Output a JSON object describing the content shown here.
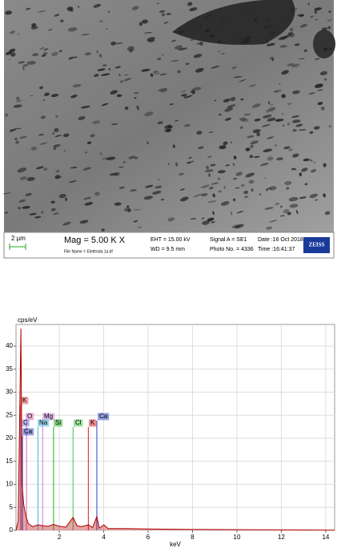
{
  "sem_image": {
    "scale_bar": "2 µm",
    "mag": "Mag =  5.00 K X",
    "file_name": "File Name = Elettroda 1a.tif",
    "eht": "EHT = 15.00 kV",
    "wd": "WD = 9.5 mm",
    "signal": "Signal A = SE1",
    "photo": "Photo No. = 4336",
    "date": "Date :16 Oct 2018",
    "time": "Time :16:41:37",
    "brand": "ZEISS"
  },
  "chart_data": {
    "type": "spectrum",
    "ylabel": "cps/eV",
    "xlabel": "keV",
    "xlim": [
      0.05,
      14.4
    ],
    "ylim": [
      0,
      44.7
    ],
    "xticks": [
      2,
      4,
      6,
      8,
      10,
      12,
      14
    ],
    "yticks": [
      0,
      5,
      10,
      15,
      20,
      25,
      30,
      35,
      40
    ],
    "grid": true,
    "series": [
      {
        "color": "#b00000",
        "x": [
          0.05,
          0.15,
          0.27,
          0.32,
          0.4,
          0.5,
          0.6,
          0.8,
          1.04,
          1.25,
          1.5,
          1.74,
          2.0,
          2.3,
          2.62,
          2.8,
          3.0,
          3.31,
          3.5,
          3.69,
          3.8,
          4.01,
          4.2,
          5,
          6,
          8,
          10,
          12,
          14.4
        ],
        "values": [
          0,
          2,
          43.8,
          10,
          5.5,
          3,
          1.5,
          0.8,
          1.2,
          1.0,
          0.9,
          1.3,
          0.9,
          0.7,
          2.8,
          1.0,
          0.8,
          1.2,
          0.6,
          3.0,
          0.5,
          1.2,
          0.4,
          0.4,
          0.3,
          0.2,
          0.15,
          0.1,
          0.05
        ]
      }
    ],
    "markers": [
      {
        "label": "K",
        "energy": 0.26,
        "color": "#e06060"
      },
      {
        "label": "O",
        "energy": 0.525,
        "color": "#e080c0"
      },
      {
        "label": "Mg",
        "energy": 1.25,
        "color": "#d090e0"
      },
      {
        "label": "Ca",
        "energy": 3.69,
        "color": "#5060d0"
      },
      {
        "label": "C",
        "energy": 0.277,
        "color": "#9090e0"
      },
      {
        "label": "Na",
        "energy": 1.04,
        "color": "#60c0e0"
      },
      {
        "label": "Si",
        "energy": 1.74,
        "color": "#40c040"
      },
      {
        "label": "Cl",
        "energy": 2.62,
        "color": "#60d060"
      },
      {
        "label": "K",
        "energy": 3.31,
        "color": "#e04040"
      },
      {
        "label": "Ca",
        "energy": 0.34,
        "color": "#5060d0"
      }
    ]
  }
}
